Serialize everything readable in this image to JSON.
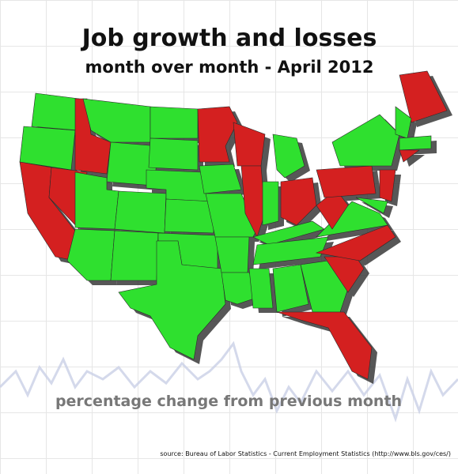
{
  "title": "Job growth and losses",
  "subtitle": "month over month - April 2012",
  "caption": "percentage change from previous month",
  "source": "source: Bureau of Labor Statistics - Current Employment Statistics (http://www.bls.gov/ces/)"
}
